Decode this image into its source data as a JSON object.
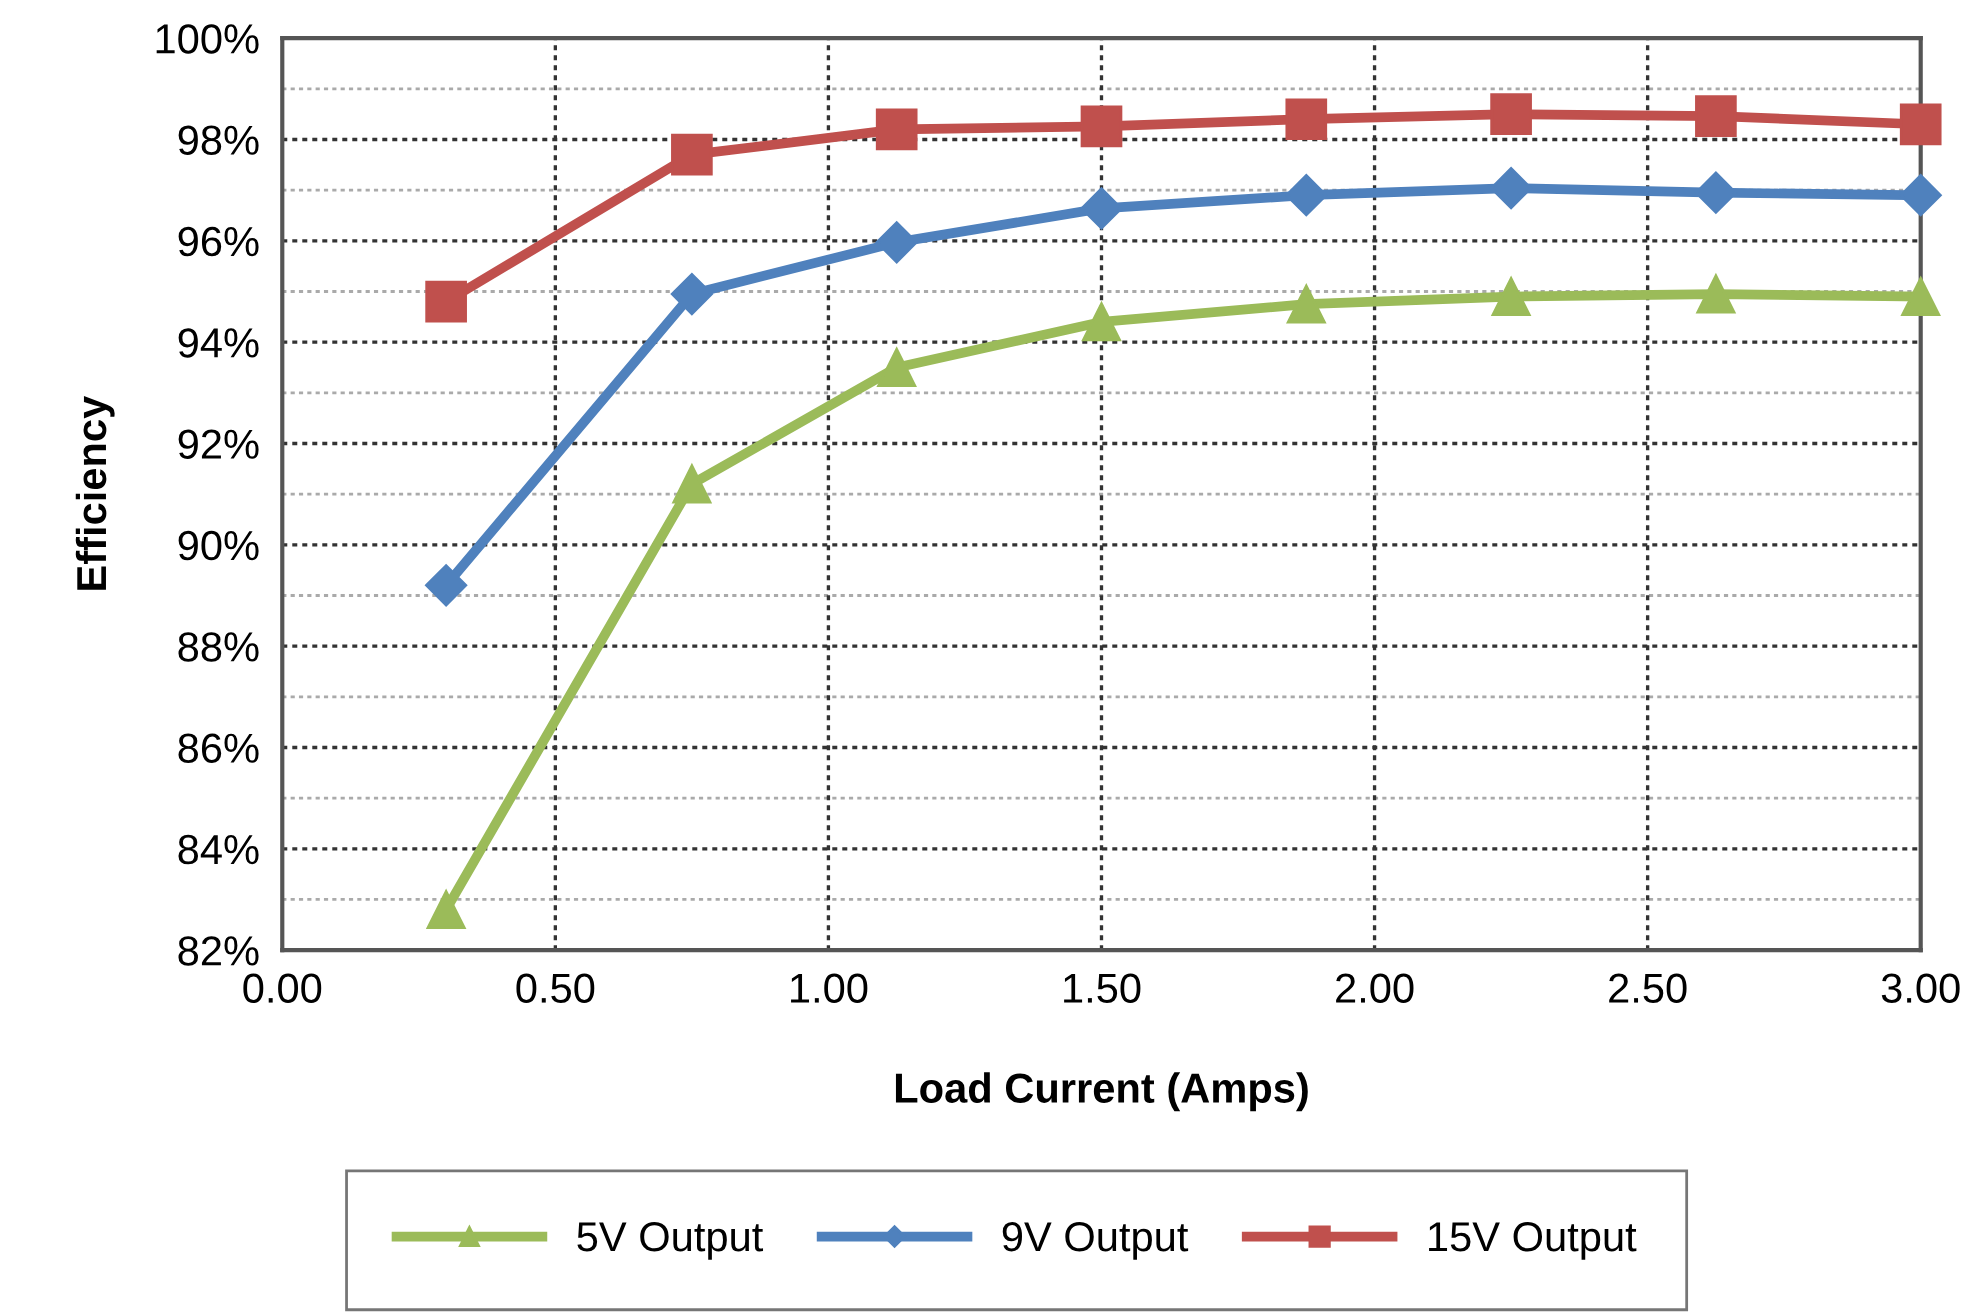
{
  "chart_data": {
    "type": "line",
    "xlabel": "Load Current (Amps)",
    "ylabel": "Efficiency",
    "x": [
      0.3,
      0.75,
      1.125,
      1.5,
      1.875,
      2.25,
      2.625,
      3.0
    ],
    "series": [
      {
        "name": "5V Output",
        "color": "#9bbb59",
        "marker": "triangle",
        "values": [
          82.8,
          91.2,
          93.5,
          94.4,
          94.75,
          94.9,
          94.95,
          94.9
        ]
      },
      {
        "name": "9V Output",
        "color": "#4f81bd",
        "marker": "diamond",
        "values": [
          89.2,
          94.95,
          95.97,
          96.64,
          96.9,
          97.04,
          96.95,
          96.9
        ]
      },
      {
        "name": "15V Output",
        "color": "#c0504d",
        "marker": "square",
        "values": [
          94.8,
          97.7,
          98.2,
          98.26,
          98.4,
          98.5,
          98.46,
          98.3
        ]
      }
    ],
    "xlim": [
      0,
      3
    ],
    "xticks": [
      {
        "value": 0,
        "label": "0.00"
      },
      {
        "value": 0.5,
        "label": "0.50"
      },
      {
        "value": 1,
        "label": "1.00"
      },
      {
        "value": 1.5,
        "label": "1.50"
      },
      {
        "value": 2,
        "label": "2.00"
      },
      {
        "value": 2.5,
        "label": "2.50"
      },
      {
        "value": 3,
        "label": "3.00"
      }
    ],
    "ylim": [
      82,
      100
    ],
    "yticks": [
      {
        "value": 82,
        "label": "82%"
      },
      {
        "value": 84,
        "label": "84%"
      },
      {
        "value": 86,
        "label": "86%"
      },
      {
        "value": 88,
        "label": "88%"
      },
      {
        "value": 90,
        "label": "90%"
      },
      {
        "value": 92,
        "label": "92%"
      },
      {
        "value": 94,
        "label": "94%"
      },
      {
        "value": 96,
        "label": "96%"
      },
      {
        "value": 98,
        "label": "98%"
      },
      {
        "value": 100,
        "label": "100%"
      }
    ],
    "grid": true,
    "legend": "bottom",
    "line_style": "solid"
  }
}
